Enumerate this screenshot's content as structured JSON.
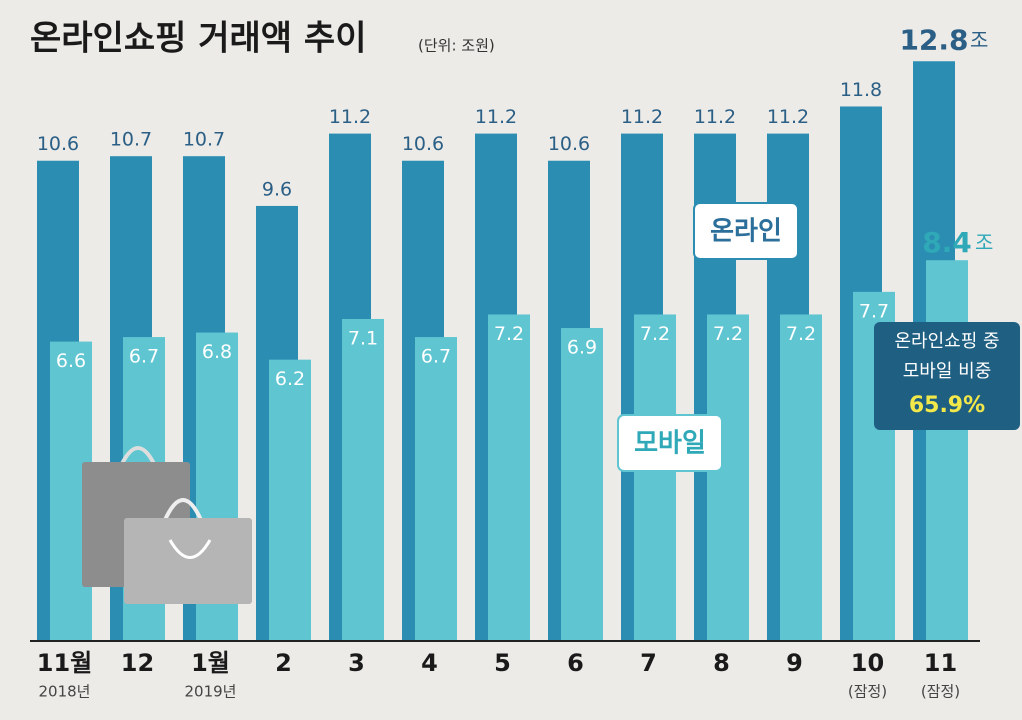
{
  "chart_data": {
    "type": "bar",
    "title": "온라인쇼핑 거래액 추이",
    "subtitle": "(단위: 조원)",
    "categories": [
      "11월",
      "12",
      "1월",
      "2",
      "3",
      "4",
      "5",
      "6",
      "7",
      "8",
      "9",
      "10",
      "11"
    ],
    "category_notes": [
      "2018년",
      null,
      "2019년",
      null,
      null,
      null,
      null,
      null,
      null,
      null,
      null,
      "(잠정)",
      "(잠정)"
    ],
    "series": [
      {
        "name": "온라인",
        "color": "#2b8db2",
        "values": [
          10.6,
          10.7,
          10.7,
          9.6,
          11.2,
          10.6,
          11.2,
          10.6,
          11.2,
          11.2,
          11.2,
          11.8,
          12.8
        ]
      },
      {
        "name": "모바일",
        "color": "#5ec5d1",
        "values": [
          6.6,
          6.7,
          6.8,
          6.2,
          7.1,
          6.7,
          7.2,
          6.9,
          7.2,
          7.2,
          7.2,
          7.7,
          8.4
        ]
      }
    ],
    "unit_label": "조",
    "callout": [
      "온라인쇼핑 중",
      "모바일 비중",
      "65.9%"
    ],
    "ylim": [
      0,
      14
    ]
  }
}
